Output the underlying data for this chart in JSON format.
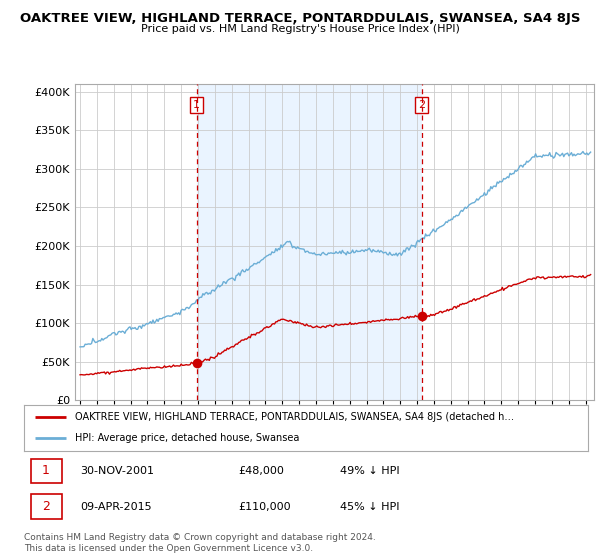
{
  "title": "OAKTREE VIEW, HIGHLAND TERRACE, PONTARDDULAIS, SWANSEA, SA4 8JS",
  "subtitle": "Price paid vs. HM Land Registry's House Price Index (HPI)",
  "ylim": [
    0,
    400000
  ],
  "xlim_start": 1994.7,
  "xlim_end": 2025.5,
  "sale1_date": 2001.92,
  "sale1_price": 48000,
  "sale1_label": "1",
  "sale2_date": 2015.27,
  "sale2_price": 110000,
  "sale2_label": "2",
  "legend_line1": "OAKTREE VIEW, HIGHLAND TERRACE, PONTARDDULAIS, SWANSEA, SA4 8JS (detached h…",
  "legend_line2": "HPI: Average price, detached house, Swansea",
  "hpi_color": "#6baed6",
  "sale_color": "#cc0000",
  "vline_color": "#cc0000",
  "shade_color": "#ddeeff",
  "background_color": "#ffffff",
  "grid_color": "#cccccc",
  "footnote": "Contains HM Land Registry data © Crown copyright and database right 2024.\nThis data is licensed under the Open Government Licence v3.0."
}
